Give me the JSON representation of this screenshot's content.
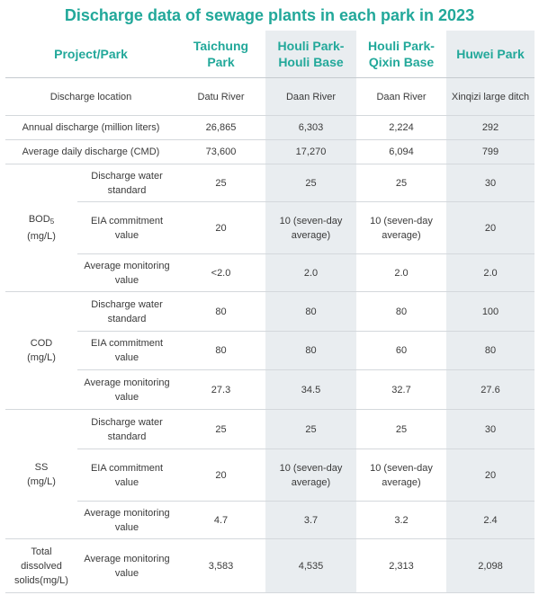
{
  "title": "Discharge data of sewage plants in each park in 2023",
  "headers": {
    "project": "Project/Park",
    "col1": "Taichung Park",
    "col2": "Houli Park-Houli Base",
    "col3": "Houli Park-Qixin Base",
    "col4": "Huwei Park"
  },
  "rows": {
    "location": {
      "label": "Discharge location",
      "v": [
        "Datu River",
        "Daan River",
        "Daan River",
        "Xinqizi large ditch"
      ]
    },
    "annual": {
      "label": "Annual discharge (million liters)",
      "v": [
        "26,865",
        "6,303",
        "2,224",
        "292"
      ]
    },
    "daily": {
      "label": "Average daily discharge (CMD)",
      "v": [
        "73,600",
        "17,270",
        "6,094",
        "799"
      ]
    }
  },
  "groups": {
    "bod": {
      "label_main": "BOD",
      "label_sub": "5",
      "label_unit": "(mg/L)",
      "standard": {
        "label": "Discharge water standard",
        "v": [
          "25",
          "25",
          "25",
          "30"
        ]
      },
      "eia": {
        "label": "EIA commitment value",
        "v": [
          "20",
          "10 (seven-day average)",
          "10 (seven-day average)",
          "20"
        ]
      },
      "monitor": {
        "label": "Average monitoring value",
        "v": [
          "<2.0",
          "2.0",
          "2.0",
          "2.0"
        ]
      }
    },
    "cod": {
      "label_main": "COD",
      "label_unit": "(mg/L)",
      "standard": {
        "label": "Discharge water standard",
        "v": [
          "80",
          "80",
          "80",
          "100"
        ]
      },
      "eia": {
        "label": "EIA commitment value",
        "v": [
          "80",
          "80",
          "60",
          "80"
        ]
      },
      "monitor": {
        "label": "Average monitoring value",
        "v": [
          "27.3",
          "34.5",
          "32.7",
          "27.6"
        ]
      }
    },
    "ss": {
      "label_main": "SS",
      "label_unit": "(mg/L)",
      "standard": {
        "label": "Discharge water standard",
        "v": [
          "25",
          "25",
          "25",
          "30"
        ]
      },
      "eia": {
        "label": "EIA commitment value",
        "v": [
          "20",
          "10 (seven-day average)",
          "10 (seven-day average)",
          "20"
        ]
      },
      "monitor": {
        "label": "Average monitoring value",
        "v": [
          "4.7",
          "3.7",
          "3.2",
          "2.4"
        ]
      }
    },
    "tds": {
      "label_main": "Total dissolved solids(mg/L)",
      "monitor": {
        "label": "Average monitoring value",
        "v": [
          "3,583",
          "4,535",
          "2,313",
          "2,098"
        ]
      }
    }
  },
  "colors": {
    "accent": "#22a89a",
    "shade": "#e9edf0",
    "rule": "#d4d8dc"
  }
}
